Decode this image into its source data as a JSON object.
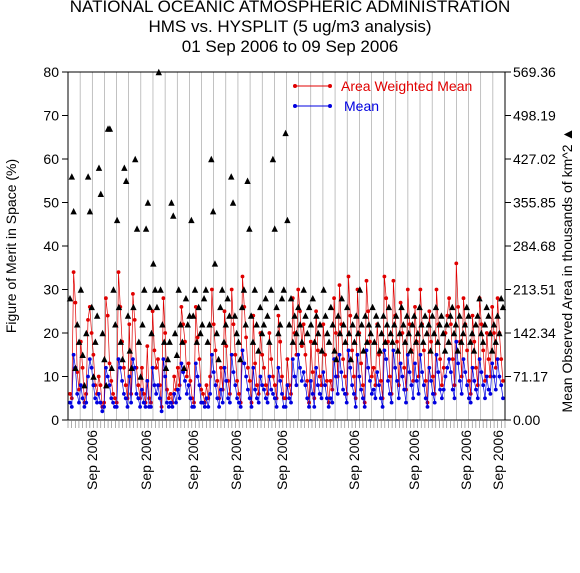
{
  "chart_data": {
    "type": "line",
    "title_lines": [
      "NATIONAL OCEANIC ATMOSPHERIC ADMINISTRATION",
      "HMS vs. HYSPLIT (5 ug/m3 analysis)",
      "01 Sep 2006 to 09 Sep 2006"
    ],
    "ylabel": "Figure of Merit in Space (%)",
    "y2label": "Mean Observed Area in thousands of km^2",
    "y2label_marker": "▲",
    "ylim": [
      0,
      80
    ],
    "yticks": [
      "0",
      "10",
      "20",
      "30",
      "40",
      "50",
      "60",
      "70",
      "80"
    ],
    "y2lim": [
      0,
      569.36
    ],
    "y2ticks": [
      "0.00",
      "71.17",
      "142.34",
      "213.51",
      "284.68",
      "355.85",
      "427.02",
      "498.19",
      "569.36"
    ],
    "xtick_labels": [
      "Sep 2006",
      "Sep 2006",
      "Sep 2006",
      "Sep 2006",
      "Sep 2006",
      "Sep 2006",
      "Sep 2006",
      "Sep 2006",
      "Sep 2006"
    ],
    "legend_position": "top-right",
    "colors": {
      "awm": "#e00000",
      "mean": "#0000e0",
      "area": "#000000",
      "grid": "#999999"
    },
    "series": [
      {
        "name": "Area Weighted Mean",
        "values": [
          6,
          5,
          34,
          27,
          11,
          7,
          18,
          12,
          4,
          6,
          23,
          26,
          20,
          15,
          8,
          6,
          10,
          8,
          3,
          4,
          28,
          24,
          13,
          9,
          6,
          5,
          4,
          34,
          26,
          18,
          12,
          8,
          5,
          22,
          6,
          29,
          23,
          12,
          8,
          5,
          12,
          6,
          4,
          17,
          5,
          4,
          25,
          16,
          12,
          14,
          8,
          3,
          28,
          20,
          7,
          5,
          6,
          4,
          10,
          7,
          12,
          8,
          26,
          22,
          18,
          10,
          13,
          9,
          5,
          4,
          26,
          19,
          14,
          7,
          6,
          4,
          8,
          5,
          10,
          30,
          22,
          16,
          9,
          5,
          12,
          7,
          25,
          17,
          9,
          6,
          30,
          22,
          15,
          9,
          6,
          4,
          33,
          26,
          19,
          12,
          9,
          4,
          24,
          13,
          8,
          6,
          20,
          15,
          12,
          8,
          6,
          20,
          14,
          10,
          8,
          5,
          24,
          18,
          10,
          5,
          5,
          14,
          8,
          6,
          28,
          20,
          15,
          30,
          25,
          17,
          22,
          15,
          9,
          4,
          18,
          11,
          5,
          25,
          16,
          10,
          8,
          22,
          15,
          9,
          4,
          9,
          7,
          28,
          20,
          10,
          31,
          22,
          14,
          10,
          6,
          33,
          24,
          16,
          10,
          5,
          30,
          20,
          13,
          8,
          4,
          32,
          25,
          18,
          10,
          12,
          8,
          22,
          15,
          9,
          5,
          33,
          28,
          18,
          10,
          6,
          32,
          24,
          18,
          8,
          27,
          20,
          12,
          7,
          30,
          22,
          16,
          9,
          26,
          18,
          10,
          30,
          22,
          16,
          9,
          4,
          25,
          18,
          10,
          6,
          30,
          22,
          14,
          8,
          12,
          20,
          24,
          28,
          22,
          14,
          8,
          36,
          26,
          18,
          10,
          28,
          22,
          16,
          9,
          6,
          24,
          18,
          12,
          8,
          28,
          22,
          16,
          9,
          20,
          14,
          10,
          26,
          20,
          12,
          28,
          20,
          14,
          9
        ],
        "point_count": 240
      },
      {
        "name": "Mean",
        "values": [
          4,
          3,
          15,
          12,
          6,
          4,
          8,
          5,
          3,
          4,
          10,
          14,
          12,
          8,
          5,
          4,
          6,
          4,
          2,
          3,
          12,
          10,
          8,
          5,
          4,
          3,
          3,
          14,
          12,
          9,
          6,
          5,
          3,
          10,
          4,
          14,
          12,
          6,
          5,
          3,
          7,
          4,
          3,
          9,
          3,
          3,
          12,
          8,
          6,
          8,
          5,
          2,
          14,
          10,
          4,
          3,
          4,
          3,
          6,
          4,
          7,
          5,
          13,
          11,
          9,
          6,
          8,
          5,
          3,
          3,
          13,
          10,
          8,
          4,
          4,
          3,
          5,
          3,
          6,
          15,
          11,
          8,
          5,
          3,
          7,
          4,
          12,
          9,
          5,
          4,
          15,
          11,
          8,
          5,
          4,
          3,
          16,
          13,
          10,
          7,
          5,
          3,
          12,
          7,
          5,
          4,
          10,
          8,
          7,
          5,
          4,
          10,
          7,
          6,
          5,
          3,
          12,
          9,
          6,
          3,
          3,
          8,
          5,
          4,
          14,
          10,
          8,
          15,
          12,
          9,
          11,
          8,
          5,
          3,
          9,
          6,
          3,
          12,
          8,
          6,
          5,
          11,
          8,
          5,
          3,
          5,
          4,
          14,
          10,
          6,
          15,
          11,
          7,
          6,
          4,
          16,
          12,
          8,
          6,
          3,
          15,
          10,
          7,
          5,
          3,
          16,
          12,
          9,
          6,
          7,
          5,
          11,
          8,
          5,
          3,
          16,
          14,
          9,
          6,
          4,
          16,
          12,
          9,
          5,
          13,
          10,
          7,
          4,
          15,
          11,
          8,
          5,
          13,
          9,
          6,
          15,
          11,
          8,
          5,
          3,
          12,
          9,
          6,
          4,
          15,
          11,
          7,
          5,
          7,
          10,
          12,
          14,
          11,
          7,
          5,
          18,
          13,
          9,
          6,
          14,
          11,
          8,
          5,
          4,
          12,
          9,
          7,
          5,
          14,
          11,
          8,
          5,
          10,
          7,
          6,
          13,
          10,
          7,
          14,
          10,
          8,
          5
        ],
        "point_count": 240
      },
      {
        "name": "Mean Observed Area",
        "axis": "right",
        "unit": "thousands of km^2",
        "values": [
          28,
          56,
          48,
          12,
          22,
          18,
          30,
          15,
          8,
          20,
          56,
          48,
          26,
          10,
          18,
          24,
          58,
          52,
          20,
          14,
          8,
          67,
          67,
          12,
          30,
          22,
          46,
          26,
          18,
          14,
          58,
          55,
          24,
          16,
          12,
          26,
          60,
          44,
          18,
          10,
          22,
          30,
          44,
          50,
          26,
          20,
          36,
          30,
          26,
          80,
          30,
          22,
          18,
          12,
          14,
          18,
          50,
          47,
          20,
          15,
          30,
          22,
          18,
          12,
          28,
          22,
          24,
          46,
          24,
          30,
          18,
          26,
          20,
          22,
          28,
          30,
          18,
          22,
          60,
          48,
          36,
          20,
          14,
          26,
          30,
          18,
          22,
          28,
          24,
          56,
          50,
          24,
          20,
          18,
          14,
          26,
          30,
          22,
          55,
          44,
          24,
          18,
          30,
          22,
          16,
          26,
          20,
          22,
          28,
          24,
          18,
          30,
          60,
          44,
          26,
          20,
          22,
          28,
          30,
          66,
          46,
          22,
          28,
          18,
          24,
          20,
          26,
          22,
          18,
          30,
          24,
          20,
          26,
          22,
          28,
          18,
          24,
          20,
          22,
          16,
          30,
          24,
          20,
          18,
          26,
          22,
          16,
          14,
          24,
          20,
          28,
          22,
          18,
          26,
          20,
          14,
          22,
          18,
          24,
          20,
          30,
          22,
          16,
          24,
          18,
          22,
          20,
          26,
          18,
          24,
          22,
          16,
          20,
          24,
          18,
          22,
          26,
          20,
          18,
          22,
          24,
          16,
          20,
          26,
          22,
          18,
          24,
          20,
          16,
          22,
          24,
          18,
          20,
          26,
          22,
          18,
          24,
          20,
          22,
          16,
          24,
          20,
          26,
          18,
          22,
          24,
          20,
          16,
          22,
          18,
          24,
          26,
          20,
          22,
          16,
          24,
          18,
          20,
          22,
          26,
          24,
          18,
          20,
          16,
          22,
          24,
          28,
          20,
          18,
          22,
          26,
          24,
          20,
          16,
          22,
          18,
          24,
          20,
          28,
          26
        ],
        "point_count": 240
      }
    ]
  }
}
